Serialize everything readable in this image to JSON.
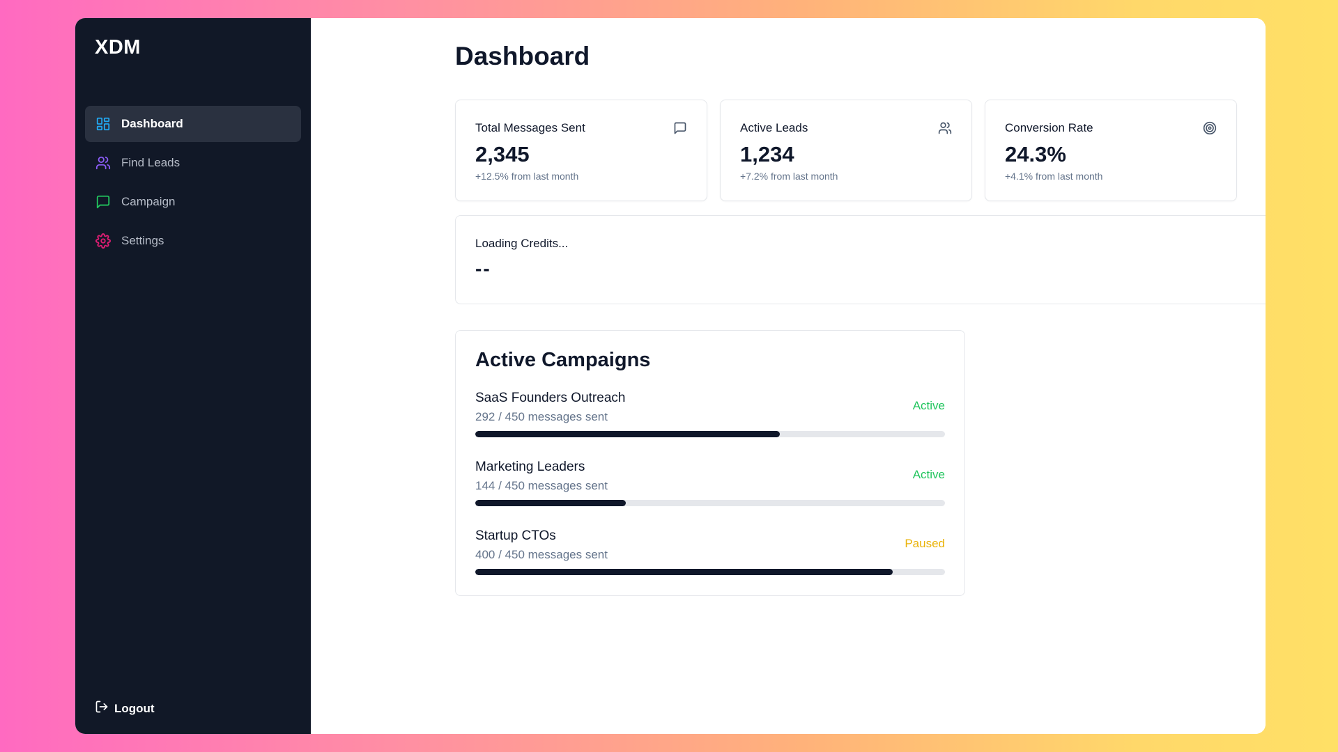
{
  "app": {
    "logo": "XDM"
  },
  "sidebar": {
    "items": [
      {
        "label": "Dashboard",
        "icon": "dashboard-grid-icon",
        "color": "#22a7f0",
        "active": true
      },
      {
        "label": "Find Leads",
        "icon": "users-icon",
        "color": "#8b5cf6",
        "active": false
      },
      {
        "label": "Campaign",
        "icon": "message-square-icon",
        "color": "#22c55e",
        "active": false
      },
      {
        "label": "Settings",
        "icon": "gear-icon",
        "color": "#e11d74",
        "active": false
      }
    ],
    "logout": {
      "label": "Logout",
      "icon": "logout-icon"
    }
  },
  "main": {
    "title": "Dashboard",
    "stats": [
      {
        "title": "Total Messages Sent",
        "value": "2,345",
        "delta": "+12.5% from last month",
        "icon": "message-square-icon"
      },
      {
        "title": "Active Leads",
        "value": "1,234",
        "delta": "+7.2% from last month",
        "icon": "users-icon"
      },
      {
        "title": "Conversion Rate",
        "value": "24.3%",
        "delta": "+4.1% from last month",
        "icon": "target-icon"
      }
    ],
    "credits": {
      "title": "Loading Credits...",
      "value": "--"
    },
    "campaigns": {
      "heading": "Active Campaigns",
      "items": [
        {
          "name": "SaaS Founders Outreach",
          "progress_text": "292 / 450 messages sent",
          "sent": 292,
          "total": 450,
          "status": "Active",
          "status_color": "#22c55e"
        },
        {
          "name": "Marketing Leaders",
          "progress_text": "144 / 450 messages sent",
          "sent": 144,
          "total": 450,
          "status": "Active",
          "status_color": "#22c55e"
        },
        {
          "name": "Startup CTOs",
          "progress_text": "400 / 450 messages sent",
          "sent": 400,
          "total": 450,
          "status": "Paused",
          "status_color": "#eab308"
        }
      ]
    }
  }
}
